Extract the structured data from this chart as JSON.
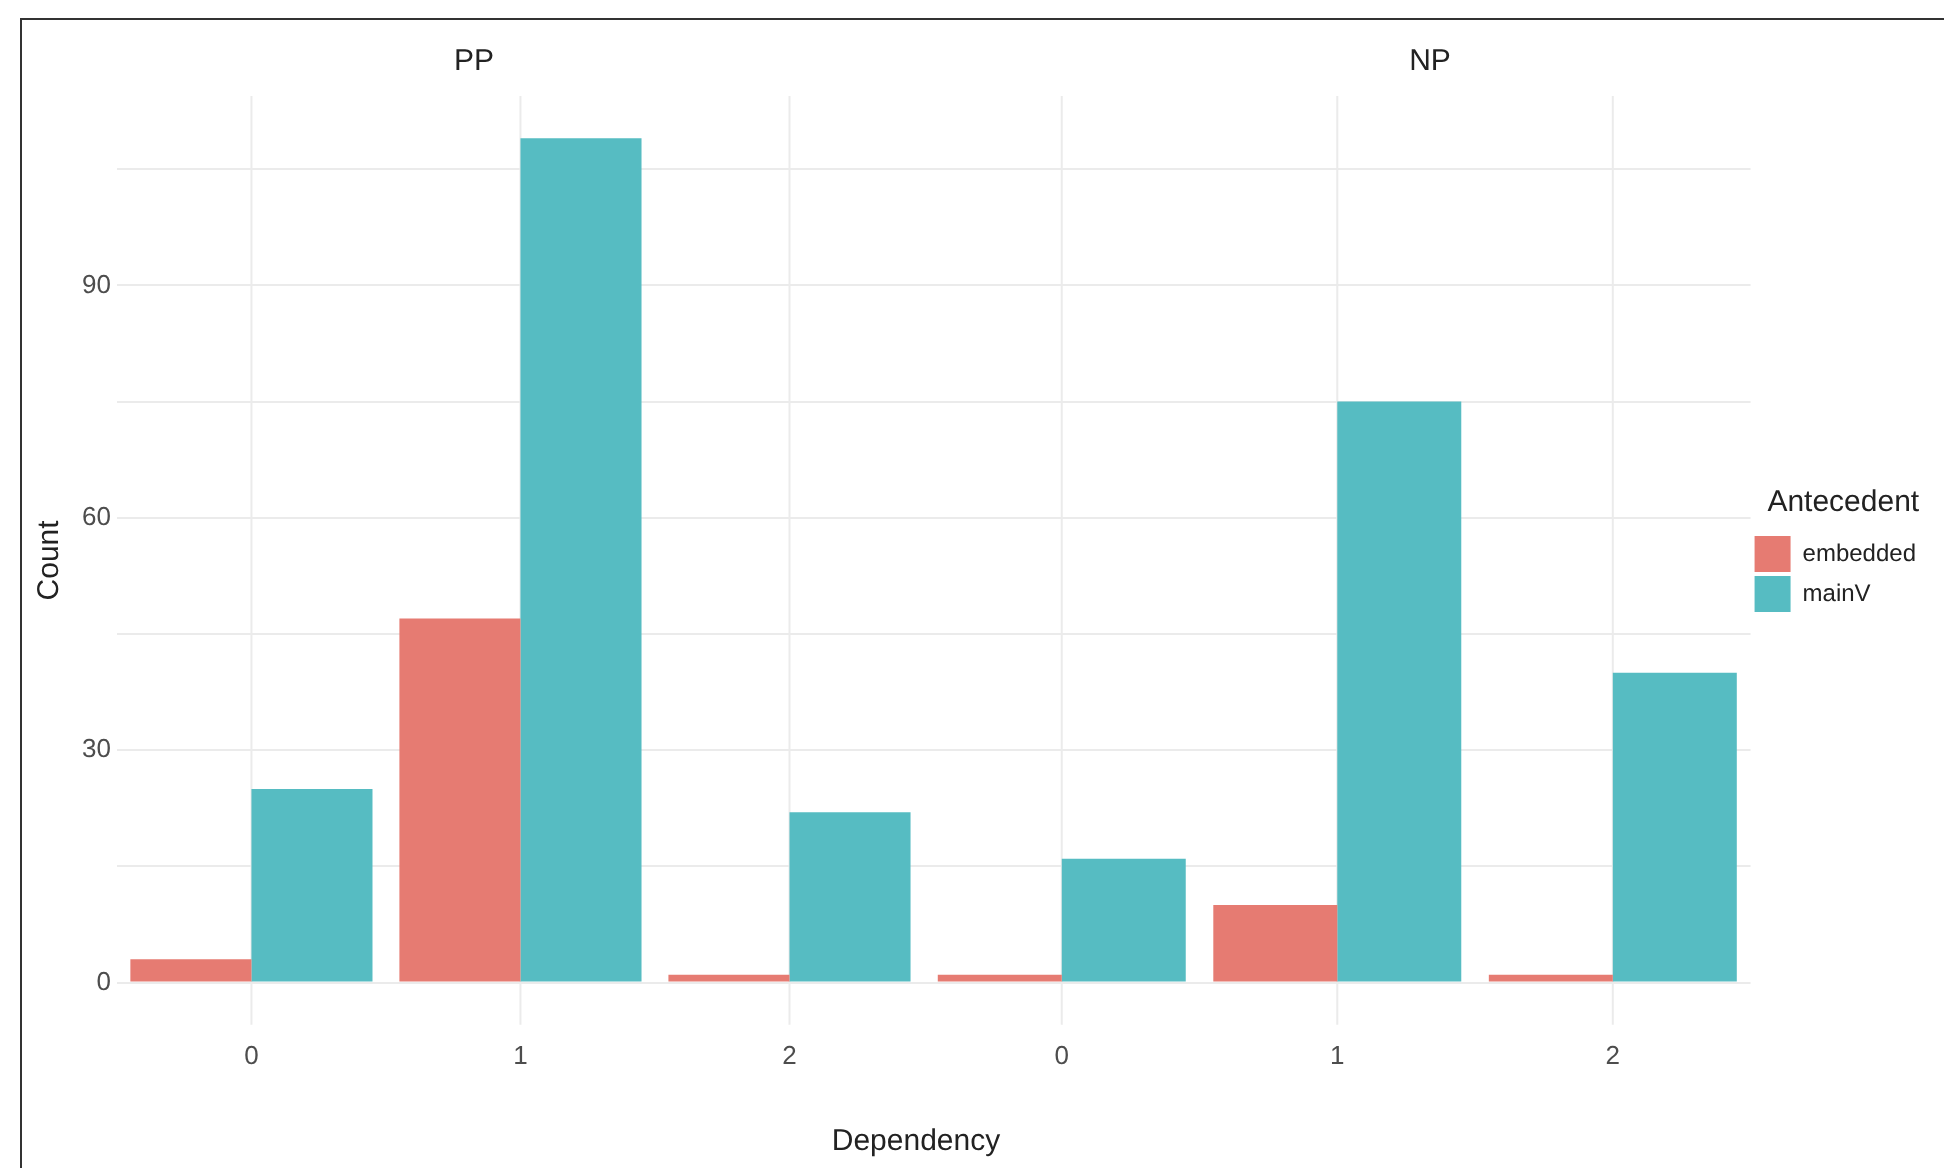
{
  "chart_data": [
    {
      "type": "bar",
      "title": "PP",
      "xlabel": "Dependency",
      "ylabel": "Count",
      "categories": [
        "0",
        "1",
        "2"
      ],
      "series": [
        {
          "color": "#e67b72",
          "values": [
            3,
            47,
            1
          ]
        },
        {
          "color": "#56bcc2",
          "values": [
            25,
            109,
            22
          ]
        }
      ],
      "ylim": [
        -5.45,
        114.45
      ],
      "yticks": [
        0,
        {
          "value": 15,
          "label": null
        },
        30,
        {
          "value": 45,
          "label": null
        },
        60,
        {
          "value": 75,
          "label": null
        },
        90,
        {
          "value": 105,
          "label": null
        }
      ],
      "grid": true,
      "legend": false
    },
    {
      "type": "bar",
      "title": "NP",
      "legend_title": "Antecedent",
      "categories": [
        "0",
        "1",
        "2"
      ],
      "series": [
        {
          "name": "embedded",
          "color": "#e67b72",
          "values": [
            1,
            10,
            1
          ]
        },
        {
          "name": "mainV",
          "color": "#56bcc2",
          "values": [
            16,
            75,
            40
          ]
        }
      ],
      "ylim": [
        -5.45,
        114.45
      ],
      "yticks": [
        0,
        {
          "value": 15,
          "label": null
        },
        30,
        {
          "value": 45,
          "label": null
        },
        60,
        {
          "value": 75,
          "label": null
        },
        90,
        {
          "value": 105,
          "label": null
        }
      ],
      "grid": true,
      "legend": "right",
      "tick_labels": "x"
    }
  ]
}
